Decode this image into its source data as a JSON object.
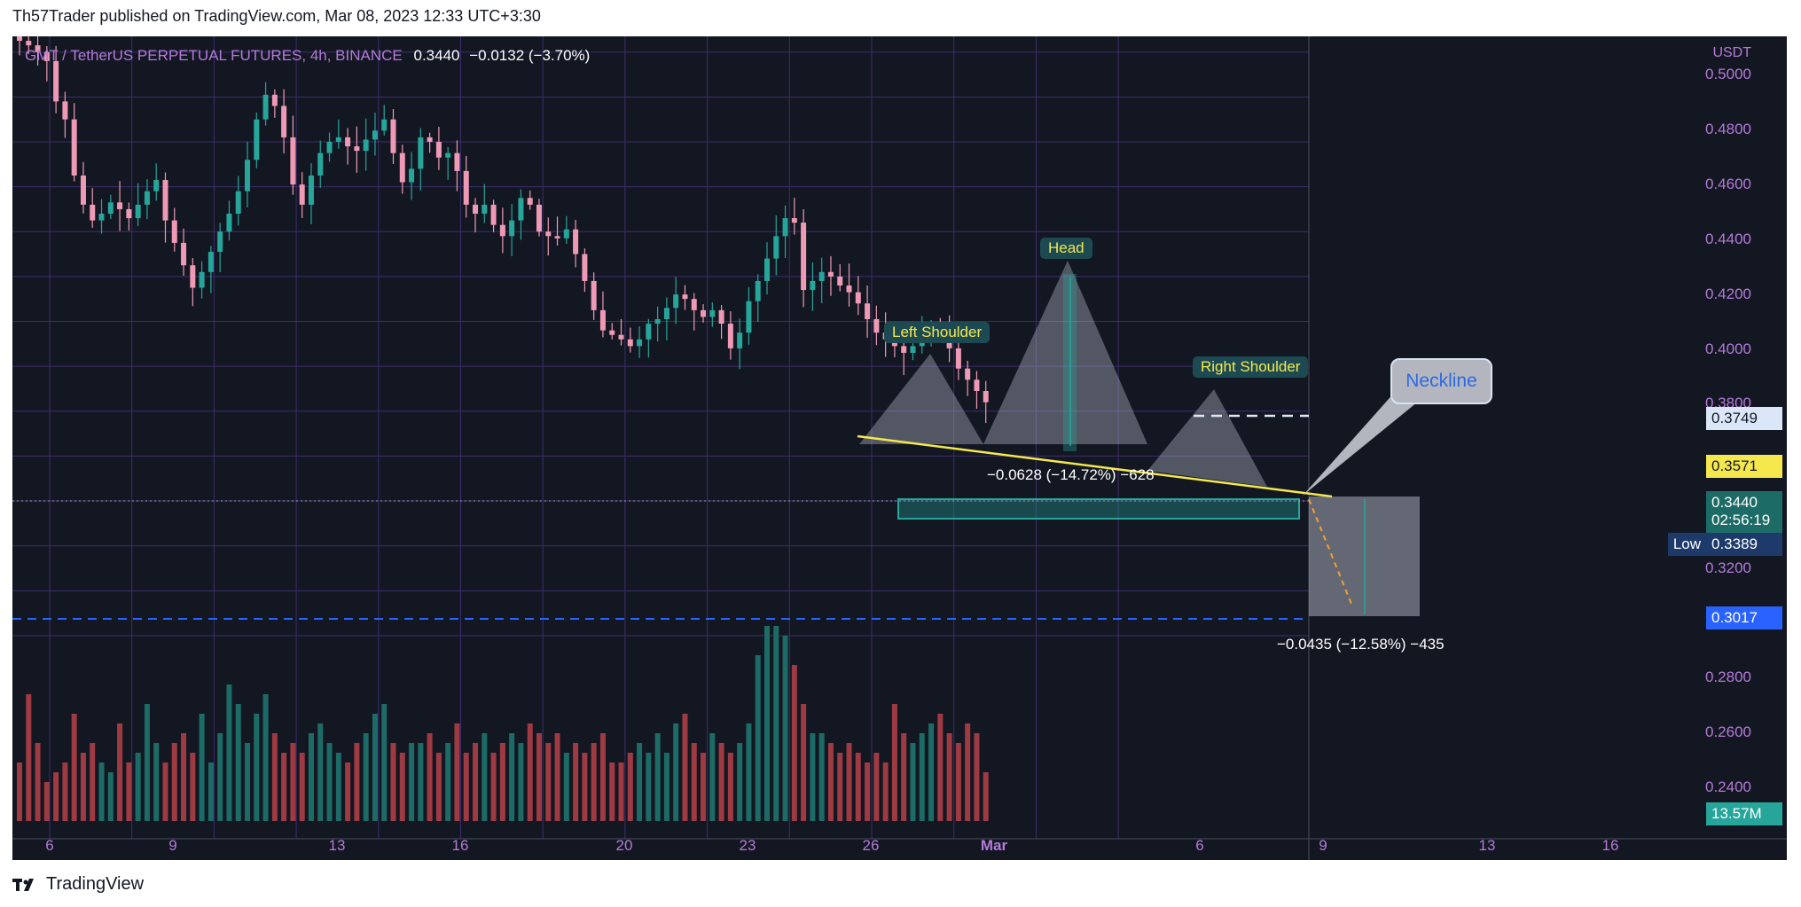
{
  "header": {
    "published": "Th57Trader published on TradingView.com, Mar 08, 2023 12:33 UTC+3:30"
  },
  "legend": {
    "symbol": "GMT / TetherUS PERPETUAL FUTURES, 4h, BINANCE",
    "last": "0.3440",
    "change": "−0.0132 (−3.70%)"
  },
  "annotations": {
    "left_shoulder": "Left Shoulder",
    "head": "Head",
    "right_shoulder": "Right Shoulder",
    "neckline": "Neckline",
    "measure_top": "−0.0628 (−14.72%) −628",
    "measure_bottom": "−0.0435 (−12.58%) −435"
  },
  "price_axis": {
    "currency": "USDT",
    "labels": [
      "0.5000",
      "0.4800",
      "0.4600",
      "0.4400",
      "0.4200",
      "0.4000",
      "0.3800",
      "0.3200",
      "0.2800",
      "0.2600",
      "0.2400"
    ],
    "marker_white": "0.3749",
    "marker_yellow": "0.3571",
    "marker_current": "0.3440",
    "countdown": "02:56:19",
    "low_label": "Low",
    "low_value": "0.3389",
    "marker_blue": "0.3017",
    "volume": "13.57M"
  },
  "time_axis": {
    "labels": [
      "6",
      "9",
      "13",
      "16",
      "20",
      "23",
      "26",
      "Mar",
      "6",
      "9",
      "13",
      "16"
    ]
  },
  "colors": {
    "background": "#131722",
    "up": "#26a69a",
    "down": "#ef9ab5",
    "volume_up": "#1d6b66",
    "volume_down": "#9e3a42",
    "neckline": "#f5e84d",
    "target_line": "#2962ff"
  },
  "chart_data": {
    "type": "candlestick",
    "symbol": "GMT/USDT Perpetual, 4h",
    "ylim": [
      0.2305,
      0.507
    ],
    "close_path": [
      0.505,
      0.503,
      0.5,
      0.496,
      0.478,
      0.47,
      0.445,
      0.432,
      0.425,
      0.428,
      0.433,
      0.43,
      0.426,
      0.432,
      0.438,
      0.443,
      0.425,
      0.415,
      0.405,
      0.395,
      0.402,
      0.411,
      0.42,
      0.428,
      0.438,
      0.452,
      0.47,
      0.481,
      0.476,
      0.462,
      0.441,
      0.432,
      0.445,
      0.455,
      0.46,
      0.462,
      0.458,
      0.456,
      0.461,
      0.465,
      0.47,
      0.455,
      0.442,
      0.448,
      0.462,
      0.46,
      0.453,
      0.455,
      0.447,
      0.432,
      0.428,
      0.432,
      0.423,
      0.418,
      0.425,
      0.435,
      0.432,
      0.42,
      0.418,
      0.417,
      0.421,
      0.41,
      0.398,
      0.385,
      0.376,
      0.374,
      0.372,
      0.369,
      0.372,
      0.379,
      0.381,
      0.386,
      0.392,
      0.39,
      0.385,
      0.382,
      0.385,
      0.379,
      0.368,
      0.375,
      0.389,
      0.398,
      0.408,
      0.418,
      0.426,
      0.424,
      0.394,
      0.398,
      0.402,
      0.4,
      0.396,
      0.393,
      0.388,
      0.381,
      0.375,
      0.372,
      0.369,
      0.366,
      0.369,
      0.375,
      0.377,
      0.373,
      0.368,
      0.359,
      0.354,
      0.349,
      0.344
    ],
    "volume_path": [
      0.3,
      0.65,
      0.4,
      0.2,
      0.25,
      0.3,
      0.55,
      0.35,
      0.4,
      0.3,
      0.25,
      0.5,
      0.3,
      0.35,
      0.6,
      0.4,
      0.3,
      0.4,
      0.45,
      0.35,
      0.55,
      0.3,
      0.45,
      0.7,
      0.6,
      0.4,
      0.55,
      0.65,
      0.45,
      0.35,
      0.4,
      0.35,
      0.45,
      0.5,
      0.4,
      0.35,
      0.3,
      0.4,
      0.45,
      0.55,
      0.6,
      0.4,
      0.35,
      0.4,
      0.4,
      0.45,
      0.35,
      0.4,
      0.5,
      0.35,
      0.4,
      0.45,
      0.35,
      0.4,
      0.45,
      0.4,
      0.5,
      0.45,
      0.4,
      0.45,
      0.35,
      0.4,
      0.35,
      0.4,
      0.45,
      0.3,
      0.3,
      0.35,
      0.4,
      0.35,
      0.45,
      0.35,
      0.5,
      0.55,
      0.4,
      0.35,
      0.45,
      0.4,
      0.35,
      0.4,
      0.5,
      0.85,
      1.0,
      1.0,
      0.95,
      0.8,
      0.6,
      0.45,
      0.45,
      0.4,
      0.35,
      0.4,
      0.35,
      0.3,
      0.35,
      0.3,
      0.6,
      0.45,
      0.4,
      0.45,
      0.5,
      0.55,
      0.45,
      0.4,
      0.5,
      0.45,
      0.25
    ],
    "levels": {
      "neckline_break": 0.3571,
      "resistance": 0.3749,
      "target": 0.3017,
      "low": 0.3389,
      "last": 0.344
    },
    "x_ticks": [
      "6",
      "9",
      "13",
      "16",
      "20",
      "23",
      "26",
      "Mar",
      "6",
      "9",
      "13",
      "16"
    ]
  }
}
